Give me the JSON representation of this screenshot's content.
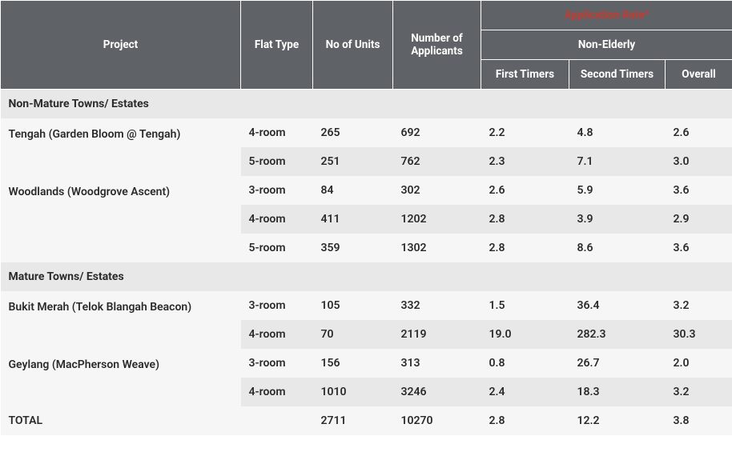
{
  "colors": {
    "header_bg": "#5f6368",
    "header_text": "#ffffff",
    "section_bg": "#e8e8e8",
    "row_light": "#f6f6f6",
    "row_dark": "#e8e8e8",
    "app_rate_color": "#c43a2e",
    "body_text": "#2b2b2b"
  },
  "headers": {
    "project": "Project",
    "flat_type": "Flat Type",
    "no_units": "No of Units",
    "no_applicants": "Number of Applicants",
    "application_rate": "Application Rate^",
    "non_elderly": "Non-Elderly",
    "first_timers": "First Timers",
    "second_timers": "Second Timers",
    "overall": "Overall"
  },
  "sections": [
    {
      "title": "Non-Mature Towns/ Estates",
      "projects": [
        {
          "name": "Tengah (Garden Bloom @ Tengah)",
          "rows": [
            {
              "flat_type": "4-room",
              "units": "265",
              "applicants": "692",
              "first": "2.2",
              "second": "4.8",
              "overall": "2.6",
              "shade": "light"
            },
            {
              "flat_type": "5-room",
              "units": "251",
              "applicants": "762",
              "first": "2.3",
              "second": "7.1",
              "overall": "3.0",
              "shade": "dark"
            }
          ]
        },
        {
          "name": "Woodlands (Woodgrove Ascent)",
          "rows": [
            {
              "flat_type": "3-room",
              "units": "84",
              "applicants": "302",
              "first": "2.6",
              "second": "5.9",
              "overall": "3.6",
              "shade": "light"
            },
            {
              "flat_type": "4-room",
              "units": "411",
              "applicants": "1202",
              "first": "2.8",
              "second": "3.9",
              "overall": "2.9",
              "shade": "dark"
            },
            {
              "flat_type": "5-room",
              "units": "359",
              "applicants": "1302",
              "first": "2.8",
              "second": "8.6",
              "overall": "3.6",
              "shade": "light"
            }
          ]
        }
      ]
    },
    {
      "title": "Mature Towns/ Estates",
      "projects": [
        {
          "name": "Bukit Merah (Telok Blangah Beacon)",
          "rows": [
            {
              "flat_type": "3-room",
              "units": "105",
              "applicants": "332",
              "first": "1.5",
              "second": "36.4",
              "overall": "3.2",
              "shade": "light"
            },
            {
              "flat_type": "4-room",
              "units": "70",
              "applicants": "2119",
              "first": "19.0",
              "second": "282.3",
              "overall": "30.3",
              "shade": "dark"
            }
          ]
        },
        {
          "name": "Geylang (MacPherson Weave)",
          "rows": [
            {
              "flat_type": "3-room",
              "units": "156",
              "applicants": "313",
              "first": "0.8",
              "second": "26.7",
              "overall": "2.0",
              "shade": "light"
            },
            {
              "flat_type": "4-room",
              "units": "1010",
              "applicants": "3246",
              "first": "2.4",
              "second": "18.3",
              "overall": "3.2",
              "shade": "dark"
            }
          ]
        }
      ]
    }
  ],
  "total_row": {
    "label": "TOTAL",
    "flat_type": "",
    "units": "2711",
    "applicants": "10270",
    "first": "2.8",
    "second": "12.2",
    "overall": "3.8",
    "shade": "light"
  }
}
